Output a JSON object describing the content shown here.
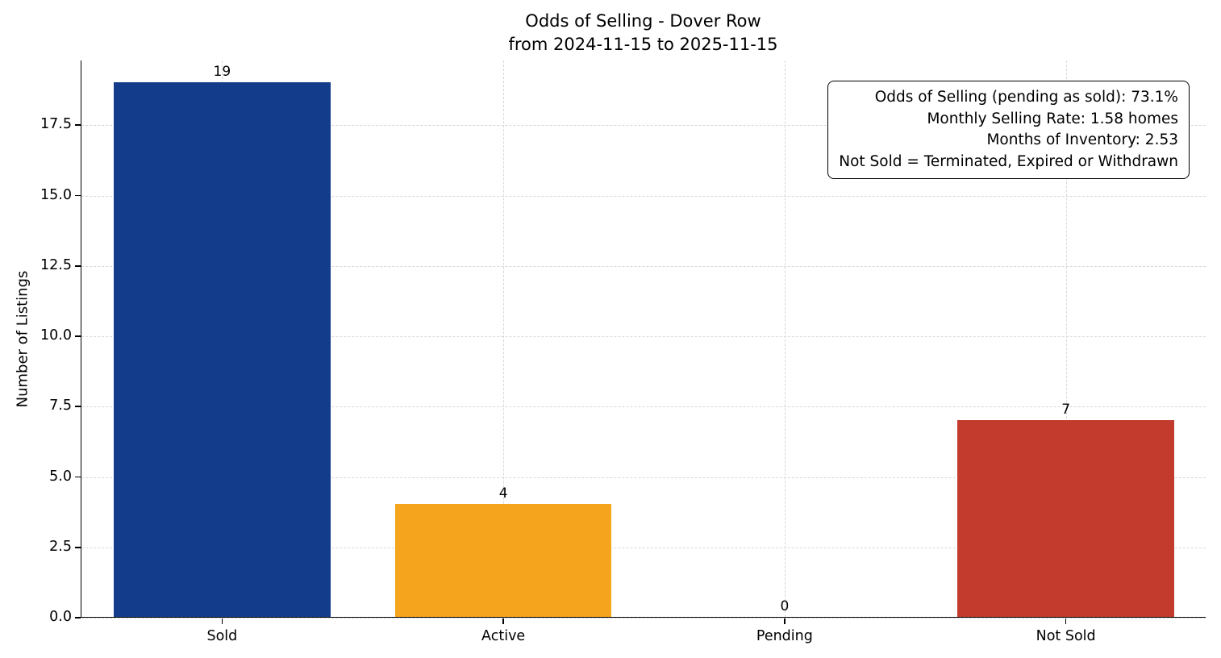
{
  "chart_data": {
    "type": "bar",
    "title": "Odds of Selling - Dover Row",
    "subtitle": "from 2024-11-15 to 2025-11-15",
    "categories": [
      "Sold",
      "Active",
      "Pending",
      "Not Sold"
    ],
    "values": [
      19,
      4,
      0,
      7
    ],
    "bar_colors": [
      "#133d8b",
      "#f4a41d",
      null,
      "#c23b2d"
    ],
    "xlabel": "",
    "ylabel": "Number of Listings",
    "ylim": [
      0,
      19.8
    ],
    "yticks": [
      0.0,
      2.5,
      5.0,
      7.5,
      10.0,
      12.5,
      15.0,
      17.5
    ],
    "grid": "dashed, horizontal and vertical",
    "legend": "none",
    "annotation": {
      "lines": [
        "Odds of Selling (pending as sold): 73.1%",
        "Monthly Selling Rate: 1.58 homes",
        "Months of Inventory: 2.53",
        "Not Sold = Terminated, Expired or Withdrawn"
      ]
    }
  }
}
